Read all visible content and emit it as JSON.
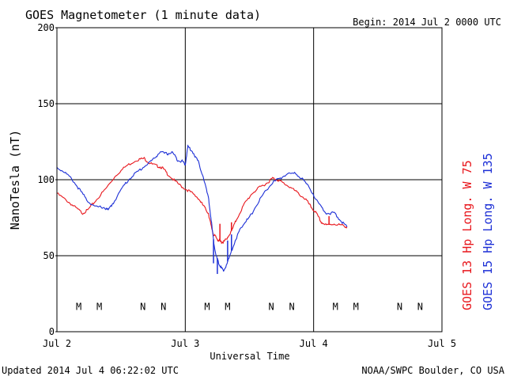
{
  "header": {
    "title": "GOES Magnetometer (1 minute data)",
    "begin": "Begin:  2014 Jul 2 0000 UTC"
  },
  "footer": {
    "updated": "Updated 2014 Jul  4 06:22:02 UTC",
    "credit": "NOAA/SWPC Boulder, CO USA"
  },
  "colors": {
    "goes13": "#e8161c",
    "goes15": "#1c2fd6",
    "axis": "#000000"
  },
  "chart_data": {
    "type": "line",
    "title": "GOES Magnetometer (1 minute data)",
    "xlabel": "Universal Time",
    "ylabel": "NanoTesla (nT)",
    "xlim": [
      0,
      3
    ],
    "ylim": [
      0,
      200
    ],
    "x_unit": "days since 2014 Jul 2 0000 UTC",
    "x_ticks": [
      {
        "value": 0,
        "label": "Jul 2"
      },
      {
        "value": 1,
        "label": "Jul 3"
      },
      {
        "value": 2,
        "label": "Jul 4"
      },
      {
        "value": 3,
        "label": "Jul 5"
      }
    ],
    "y_ticks": [
      0,
      50,
      100,
      150,
      200
    ],
    "grid": true,
    "series": [
      {
        "name": "GOES 13 Hp  Long. W 75",
        "color": "#e8161c",
        "points": [
          [
            0.0,
            91
          ],
          [
            0.08,
            86
          ],
          [
            0.14,
            82
          ],
          [
            0.2,
            78
          ],
          [
            0.24,
            80
          ],
          [
            0.3,
            86
          ],
          [
            0.38,
            94
          ],
          [
            0.46,
            103
          ],
          [
            0.54,
            109
          ],
          [
            0.62,
            113
          ],
          [
            0.68,
            114
          ],
          [
            0.72,
            111
          ],
          [
            0.78,
            109
          ],
          [
            0.82,
            108
          ],
          [
            0.86,
            104
          ],
          [
            0.92,
            99
          ],
          [
            0.98,
            95
          ],
          [
            1.04,
            92
          ],
          [
            1.1,
            88
          ],
          [
            1.14,
            83
          ],
          [
            1.18,
            78
          ],
          [
            1.2,
            70
          ],
          [
            1.22,
            64
          ],
          [
            1.24,
            62
          ],
          [
            1.26,
            60
          ],
          [
            1.28,
            59
          ],
          [
            1.3,
            59
          ],
          [
            1.32,
            61
          ],
          [
            1.36,
            66
          ],
          [
            1.4,
            74
          ],
          [
            1.46,
            84
          ],
          [
            1.52,
            91
          ],
          [
            1.58,
            95
          ],
          [
            1.64,
            98
          ],
          [
            1.68,
            101
          ],
          [
            1.72,
            100
          ],
          [
            1.76,
            98
          ],
          [
            1.82,
            95
          ],
          [
            1.88,
            91
          ],
          [
            1.94,
            87
          ],
          [
            1.98,
            82
          ],
          [
            2.02,
            78
          ],
          [
            2.06,
            72
          ],
          [
            2.1,
            70
          ],
          [
            2.16,
            71
          ],
          [
            2.22,
            70
          ],
          [
            2.26,
            69
          ]
        ],
        "spikes": [
          [
            1.27,
            71
          ],
          [
            1.36,
            72
          ],
          [
            2.12,
            76
          ]
        ]
      },
      {
        "name": "GOES 15 Hp  Long. W 135",
        "color": "#1c2fd6",
        "points": [
          [
            0.0,
            108
          ],
          [
            0.06,
            105
          ],
          [
            0.12,
            100
          ],
          [
            0.18,
            93
          ],
          [
            0.24,
            86
          ],
          [
            0.3,
            82
          ],
          [
            0.36,
            82
          ],
          [
            0.4,
            80
          ],
          [
            0.44,
            85
          ],
          [
            0.52,
            96
          ],
          [
            0.58,
            102
          ],
          [
            0.64,
            106
          ],
          [
            0.7,
            110
          ],
          [
            0.76,
            114
          ],
          [
            0.8,
            118
          ],
          [
            0.86,
            117
          ],
          [
            0.9,
            118
          ],
          [
            0.94,
            113
          ],
          [
            0.98,
            112
          ],
          [
            1.0,
            110
          ],
          [
            1.02,
            122
          ],
          [
            1.06,
            118
          ],
          [
            1.1,
            112
          ],
          [
            1.14,
            102
          ],
          [
            1.18,
            88
          ],
          [
            1.2,
            75
          ],
          [
            1.22,
            60
          ],
          [
            1.24,
            50
          ],
          [
            1.26,
            45
          ],
          [
            1.28,
            42
          ],
          [
            1.3,
            40
          ],
          [
            1.34,
            48
          ],
          [
            1.38,
            58
          ],
          [
            1.42,
            66
          ],
          [
            1.46,
            72
          ],
          [
            1.5,
            75
          ],
          [
            1.56,
            84
          ],
          [
            1.62,
            92
          ],
          [
            1.68,
            98
          ],
          [
            1.74,
            101
          ],
          [
            1.8,
            104
          ],
          [
            1.86,
            104
          ],
          [
            1.92,
            100
          ],
          [
            1.98,
            93
          ],
          [
            2.04,
            84
          ],
          [
            2.1,
            78
          ],
          [
            2.16,
            78
          ],
          [
            2.2,
            74
          ],
          [
            2.26,
            69
          ]
        ],
        "spikes": [
          [
            1.22,
            45
          ],
          [
            1.25,
            38
          ],
          [
            1.33,
            60
          ],
          [
            1.36,
            64
          ]
        ]
      }
    ],
    "annotations": [
      {
        "label": "M",
        "series": "GOES 13 Hp  Long. W 75",
        "x": 0.17
      },
      {
        "label": "M",
        "series": "GOES 15 Hp  Long. W 135",
        "x": 0.33
      },
      {
        "label": "N",
        "series": "GOES 13 Hp  Long. W 75",
        "x": 0.67
      },
      {
        "label": "N",
        "series": "GOES 15 Hp  Long. W 135",
        "x": 0.83
      },
      {
        "label": "M",
        "series": "GOES 13 Hp  Long. W 75",
        "x": 1.17
      },
      {
        "label": "M",
        "series": "GOES 15 Hp  Long. W 135",
        "x": 1.33
      },
      {
        "label": "N",
        "series": "GOES 13 Hp  Long. W 75",
        "x": 1.67
      },
      {
        "label": "N",
        "series": "GOES 15 Hp  Long. W 135",
        "x": 1.83
      },
      {
        "label": "M",
        "series": "GOES 13 Hp  Long. W 75",
        "x": 2.17
      },
      {
        "label": "M",
        "series": "GOES 15 Hp  Long. W 135",
        "x": 2.33
      },
      {
        "label": "N",
        "series": "GOES 13 Hp  Long. W 75",
        "x": 2.67
      },
      {
        "label": "N",
        "series": "GOES 15 Hp  Long. W 135",
        "x": 2.83
      }
    ],
    "annotation_y": 17
  }
}
